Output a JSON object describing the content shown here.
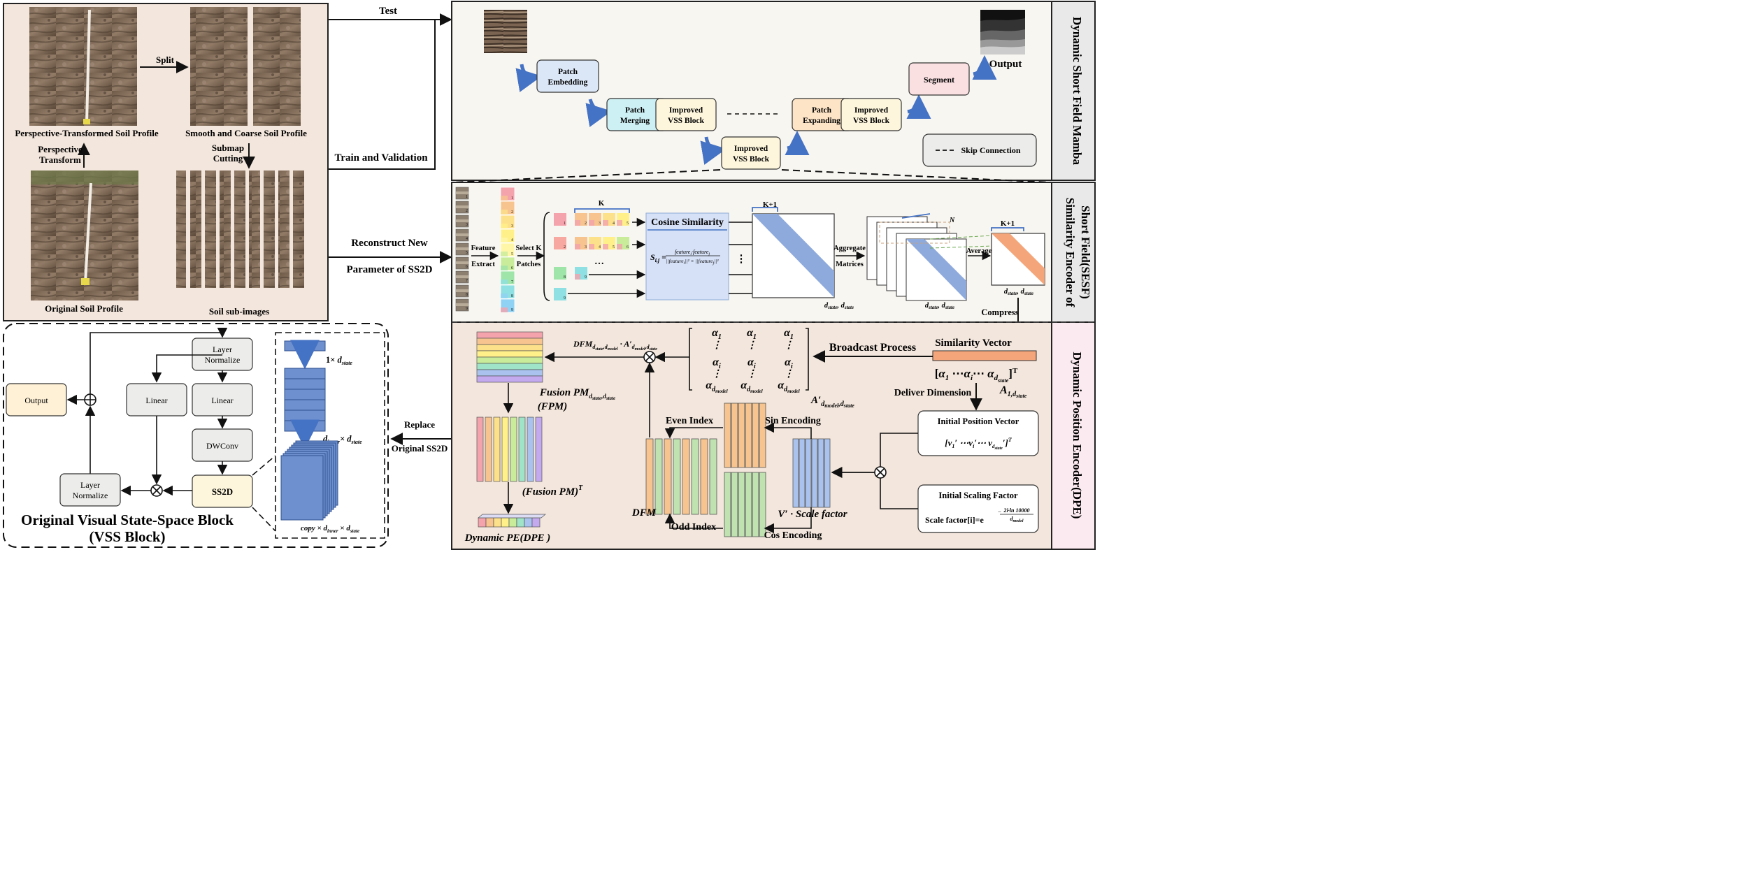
{
  "colors": {
    "panel_bg": "#f3e6dc",
    "panel_bg_right": "#f8f6f1",
    "side_bar": "#e9e9e9",
    "side_bar_pink": "#fbeaf0",
    "blue_box": "#dbe6f6",
    "cyan_box": "#cdf0f4",
    "yellow_box": "#fdf6dc",
    "orange_box": "#fde4c6",
    "pink_box": "#fbe0e2",
    "grey_box": "#ececea",
    "output_box": "#fff1d6",
    "arrow_blue": "#4472c4",
    "band_blue": "#8eaadc",
    "band_orange": "#f4a67a",
    "stripe_orange": "#f7c48f",
    "stripe_green": "#bfe2b0",
    "stripe_blue": "#a9c3ee",
    "cosine_box": "#d6e1f7"
  },
  "soil_panel": {
    "split_label": "Split",
    "perspective_label": "Perspective-Transformed Soil Profile",
    "smooth_label": "Smooth and Coarse Soil Profile",
    "perspective_transform": [
      "Perspective",
      "Transform"
    ],
    "submap_cutting": [
      "Submap",
      "Cutting"
    ],
    "original_label": "Original Soil Profile",
    "subimages_label": "Soil sub-images"
  },
  "connectors": {
    "test": "Test",
    "train_val": "Train and Validation",
    "reconstruct": "Reconstruct New",
    "parameter": "Parameter of SS2D",
    "replace": "Replace",
    "original_ss2d": "Original SS2D"
  },
  "mamba": {
    "side_title": "Dynamic Short Field Mamba",
    "patch_embedding": [
      "Patch",
      "Embedding"
    ],
    "patch_merging": [
      "Patch",
      "Merging"
    ],
    "improved_vss_1": [
      "Improved",
      "VSS Block"
    ],
    "improved_vss_bottom": [
      "Improved",
      "VSS Block"
    ],
    "patch_expanding": [
      "Patch",
      "Expanding"
    ],
    "improved_vss_2": [
      "Improved",
      "VSS Block"
    ],
    "segment": "Segment",
    "output": "Output",
    "skip_connection": "Skip Connection"
  },
  "sesf": {
    "side_title": [
      "Similarity Encoder of",
      "Short Field(SESF)"
    ],
    "feature_extract": [
      "Feature",
      "Extract"
    ],
    "select_k": [
      "Select K",
      "Patches"
    ],
    "k_label": "K",
    "cosine_similarity": "Cosine Similarity",
    "formula_lhs": "S",
    "formula_sub": "i,j",
    "formula_num": "feature",
    "formula_den": "||feature",
    "aggregate": [
      "Aggregate",
      "Matrices"
    ],
    "average": "Average",
    "k_plus_1": "K+1",
    "n_label": "N",
    "compress": "Compress",
    "dstate_label": "d",
    "dstate_sub": "state",
    "dstate_sep": ", ",
    "dots": "…",
    "vdots": "⋮",
    "patch_numbers": [
      "1",
      "2",
      "3",
      "4",
      "5",
      "6",
      "7",
      "8",
      "9"
    ],
    "sel_row1": [
      "2",
      "3",
      "4",
      "5"
    ],
    "sel_row2": [
      "3",
      "4",
      "5",
      "6"
    ],
    "sel_row3": [
      "9"
    ],
    "row_lead": [
      "1",
      "2",
      "8",
      "9"
    ]
  },
  "dpe": {
    "side_title": "Dynamic Position Encoder(DPE)",
    "similarity_vector": "Similarity Vector",
    "broadcast": "Broadcast Process",
    "deliver_dimension": "Deliver Dimension",
    "alpha": "α",
    "alpha_subs": [
      "1",
      "i",
      "d"
    ],
    "alpha_sub_model": "model",
    "a_prime": "A′",
    "a_prime_sub": "d",
    "a_prime_sub_model": "model",
    "a_prime_tail": ",d",
    "a_prime_tail_sub": "state",
    "a1": "A",
    "a1_sub": "1,d",
    "a1_sub_state": "state",
    "dfm_formula": "DFM",
    "dfm_sub": "d",
    "fusion_title": "Fusion PM",
    "fusion_sub": "d",
    "fpm_label": "(FPM)",
    "fusion_t": "(Fusion PM)",
    "dynamic_pe": "Dynamic PE(DPE )",
    "even_index": "Even Index",
    "odd_index": "Odd Index",
    "sin_encoding": "Sin Encoding",
    "cos_encoding": "Cos Encoding",
    "dfm_label": "DFM",
    "v_scale": "V′ · Scale factor",
    "initial_position": "Initial Position Vector",
    "position_vec": [
      "v",
      "v",
      "v"
    ],
    "initial_scaling": "Initial Scaling Factor",
    "scale_formula": "Scale factor[i]=e",
    "scale_exponent_num": "2i·ln 10000",
    "scale_exponent_den": "d",
    "scale_exponent_den_sub": "model"
  },
  "vss": {
    "output": "Output",
    "layer_norm_top": [
      "Layer",
      "Normalize"
    ],
    "linear_left": "Linear",
    "linear_right": "Linear",
    "dwconv": "DWConv",
    "ss2d": "SS2D",
    "layer_norm_bottom": [
      "Layer",
      "Normalize"
    ],
    "title": [
      "Original Visual State-Space Block",
      "(VSS Block)"
    ],
    "dim1": "1×",
    "dim_inner": "d",
    "dim_inner_sub": "inner",
    "dim_times": "×",
    "dim_copy": "copy ×"
  }
}
